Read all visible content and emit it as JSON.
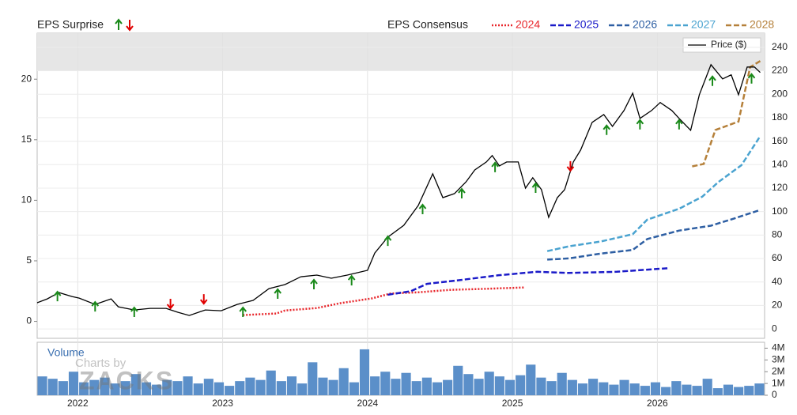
{
  "chart_data": {
    "type": "line",
    "surprise_label": "EPS Surprise",
    "consensus_label": "EPS Consensus",
    "surprise_colors": {
      "up": "#1a8a1a",
      "down": "#e00000"
    },
    "xlim": [
      2021.72,
      2026.74
    ],
    "xticks": [
      2022,
      2023,
      2024,
      2025,
      2026
    ],
    "ylim": [
      -1.4,
      23.8
    ],
    "yticks": [
      0,
      5,
      10,
      15,
      20
    ],
    "y2lim": [
      -8,
      252
    ],
    "y2ticks": [
      0,
      20,
      40,
      60,
      80,
      100,
      120,
      140,
      160,
      180,
      200,
      220,
      240
    ],
    "series": [
      {
        "name": "2024",
        "color": "#e8262b",
        "style": "dotted",
        "axis": "y",
        "x": [
          2023.14,
          2023.37,
          2023.43,
          2023.65,
          2023.81,
          2024.03,
          2024.16,
          2024.35,
          2024.57,
          2024.84,
          2025.08
        ],
        "values": [
          0.52,
          0.65,
          0.9,
          1.1,
          1.5,
          1.9,
          2.3,
          2.4,
          2.6,
          2.7,
          2.8
        ]
      },
      {
        "name": "2025",
        "color": "#1a1ac8",
        "style": "dashed",
        "axis": "y",
        "x": [
          2024.14,
          2024.3,
          2024.41,
          2024.63,
          2024.9,
          2025.17,
          2025.39,
          2025.72,
          2026.08
        ],
        "values": [
          2.2,
          2.5,
          3.1,
          3.4,
          3.8,
          4.1,
          4.0,
          4.1,
          4.4
        ]
      },
      {
        "name": "2026",
        "color": "#2e5fa3",
        "style": "dashed",
        "axis": "y",
        "x": [
          2025.24,
          2025.39,
          2025.61,
          2025.83,
          2025.93,
          2026.15,
          2026.37,
          2026.53,
          2026.71
        ],
        "values": [
          5.1,
          5.2,
          5.6,
          5.9,
          6.8,
          7.5,
          7.9,
          8.5,
          9.2
        ]
      },
      {
        "name": "2027",
        "color": "#4aa3d0",
        "style": "dashed",
        "axis": "y",
        "x": [
          2025.24,
          2025.39,
          2025.61,
          2025.83,
          2025.93,
          2026.15,
          2026.31,
          2026.42,
          2026.58,
          2026.71
        ],
        "values": [
          5.8,
          6.2,
          6.6,
          7.2,
          8.4,
          9.3,
          10.3,
          11.5,
          12.9,
          15.3
        ]
      },
      {
        "name": "2028",
        "color": "#b5803a",
        "style": "dashed",
        "axis": "y",
        "x": [
          2026.24,
          2026.32,
          2026.4,
          2026.56,
          2026.64,
          2026.71
        ],
        "values": [
          12.8,
          13.0,
          15.8,
          16.5,
          21.0,
          21.5
        ]
      },
      {
        "name": "Price ($)",
        "color": "#000000",
        "style": "solid",
        "axis": "y2",
        "x": [
          2021.72,
          2021.79,
          2021.87,
          2021.96,
          2022.01,
          2022.12,
          2022.23,
          2022.28,
          2022.39,
          2022.5,
          2022.61,
          2022.69,
          2022.77,
          2022.88,
          2022.99,
          2023.1,
          2023.21,
          2023.32,
          2023.43,
          2023.54,
          2023.65,
          2023.75,
          2023.86,
          2024.0,
          2024.05,
          2024.14,
          2024.25,
          2024.35,
          2024.45,
          2024.52,
          2024.6,
          2024.68,
          2024.74,
          2024.82,
          2024.86,
          2024.91,
          2024.96,
          2025.04,
          2025.09,
          2025.14,
          2025.2,
          2025.25,
          2025.31,
          2025.36,
          2025.42,
          2025.47,
          2025.55,
          2025.63,
          2025.69,
          2025.77,
          2025.83,
          2025.88,
          2025.96,
          2026.02,
          2026.1,
          2026.15,
          2026.23,
          2026.29,
          2026.37,
          2026.45,
          2026.51,
          2026.56,
          2026.62,
          2026.67,
          2026.71
        ],
        "values": [
          22.3,
          25.6,
          31.0,
          27.6,
          26.3,
          20.9,
          25.6,
          18.9,
          16.2,
          17.5,
          17.5,
          14.2,
          11.5,
          16.2,
          15.5,
          20.9,
          24.3,
          34.4,
          37.8,
          44.5,
          45.9,
          43.2,
          45.9,
          49.9,
          64.7,
          78.2,
          88.3,
          105.2,
          132.2,
          111.9,
          115.3,
          125.4,
          135.5,
          142.3,
          147.7,
          138.9,
          142.3,
          142.3,
          120.0,
          128.8,
          118.7,
          95.1,
          111.9,
          118.7,
          142.3,
          152.4,
          176.0,
          182.7,
          172.6,
          186.1,
          200.9,
          179.4,
          186.1,
          192.9,
          186.1,
          179.4,
          169.3,
          199.6,
          225.2,
          213.1,
          216.5,
          199.6,
          223.2,
          223.2,
          218.5
        ]
      }
    ],
    "surprises": [
      {
        "x": 2021.86,
        "y": 27.6,
        "dir": "up"
      },
      {
        "x": 2022.12,
        "y": 18.9,
        "dir": "up"
      },
      {
        "x": 2022.39,
        "y": 14.2,
        "dir": "up"
      },
      {
        "x": 2022.64,
        "y": 21.6,
        "dir": "down"
      },
      {
        "x": 2022.87,
        "y": 25.6,
        "dir": "down"
      },
      {
        "x": 2023.14,
        "y": 14.2,
        "dir": "up"
      },
      {
        "x": 2023.38,
        "y": 29.7,
        "dir": "up"
      },
      {
        "x": 2023.63,
        "y": 37.8,
        "dir": "up"
      },
      {
        "x": 2023.89,
        "y": 41.1,
        "dir": "up"
      },
      {
        "x": 2024.14,
        "y": 74.8,
        "dir": "up"
      },
      {
        "x": 2024.38,
        "y": 101.8,
        "dir": "up"
      },
      {
        "x": 2024.65,
        "y": 115.3,
        "dir": "up"
      },
      {
        "x": 2024.88,
        "y": 137.6,
        "dir": "up"
      },
      {
        "x": 2025.16,
        "y": 120.0,
        "dir": "up"
      },
      {
        "x": 2025.4,
        "y": 138.9,
        "dir": "down"
      },
      {
        "x": 2025.65,
        "y": 169.3,
        "dir": "up"
      },
      {
        "x": 2025.88,
        "y": 174.0,
        "dir": "up"
      },
      {
        "x": 2026.15,
        "y": 174.0,
        "dir": "up"
      },
      {
        "x": 2026.38,
        "y": 211.1,
        "dir": "up"
      },
      {
        "x": 2026.65,
        "y": 213.1,
        "dir": "up"
      }
    ],
    "volume": {
      "label": "Volume",
      "color": "#5b8fc9",
      "ylim": [
        0,
        4500000
      ],
      "yticks": [
        {
          "value": 0,
          "label": "0"
        },
        {
          "value": 1000000,
          "label": "1M"
        },
        {
          "value": 2000000,
          "label": "2M"
        },
        {
          "value": 3000000,
          "label": "3M"
        },
        {
          "value": 4000000,
          "label": "4M"
        }
      ],
      "values": [
        1600000,
        1400000,
        1200000,
        2000000,
        1100000,
        1300000,
        1500000,
        1000000,
        1200000,
        1800000,
        1100000,
        900000,
        1300000,
        1200000,
        1600000,
        1000000,
        1400000,
        1100000,
        800000,
        1200000,
        1500000,
        1300000,
        2100000,
        1200000,
        1600000,
        1000000,
        2800000,
        1500000,
        1300000,
        2300000,
        1100000,
        3900000,
        1600000,
        2000000,
        1400000,
        1900000,
        1200000,
        1500000,
        1100000,
        1300000,
        2500000,
        1800000,
        1400000,
        2000000,
        1600000,
        1300000,
        1700000,
        2600000,
        1500000,
        1200000,
        1900000,
        1300000,
        1000000,
        1400000,
        1100000,
        900000,
        1300000,
        1000000,
        800000,
        1100000,
        700000,
        1200000,
        900000,
        800000,
        1400000,
        600000,
        900000,
        700000,
        800000,
        1000000
      ]
    },
    "watermark": [
      "Charts by",
      "ZACKS"
    ]
  }
}
